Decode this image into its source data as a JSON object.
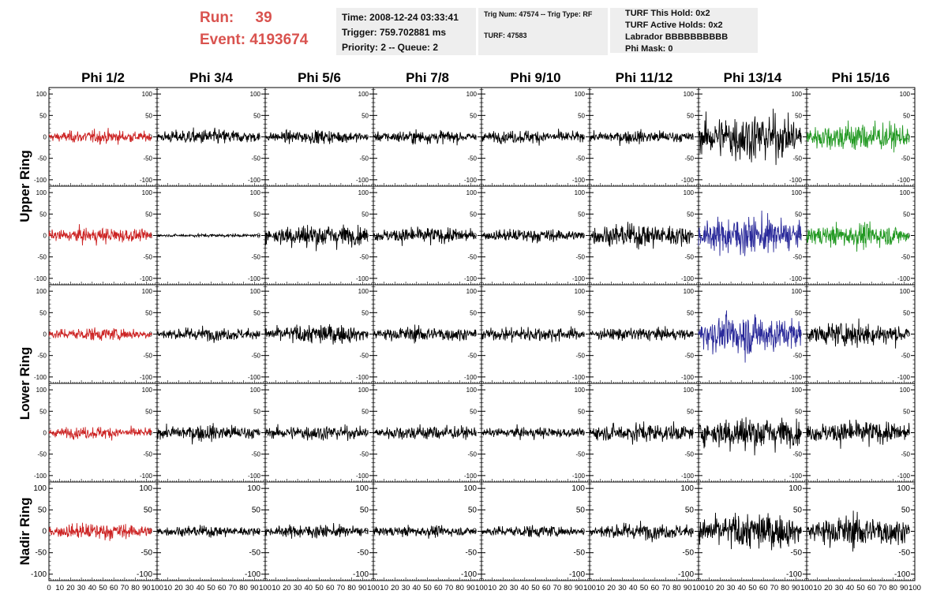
{
  "header": {
    "run_label": "Run:",
    "run_value": "39",
    "event_label": "Event:",
    "event_value": "4193674",
    "time_line": "Time: 2008-12-24 03:33:41",
    "trigger_line": "Trigger: 759.702881 ms",
    "priority_line": "Priority: 2 -- Queue: 2",
    "trig_line": "Trig Num: 47574 -- Trig Type: RF",
    "turf_line": "TURF: 47583",
    "hold_line": "TURF This Hold: 0x2",
    "active_line": "TURF Active Holds: 0x2",
    "labrador_line": "Labrador BBBBBBBBBB",
    "phimask_line": "Phi Mask: 0"
  },
  "colors": {
    "header_red": "#d9534f",
    "trace_default": "#000000",
    "trace_red": "#cc2222",
    "trace_green": "#229922",
    "trace_blue": "#2a2a9a"
  },
  "chart_data": {
    "type": "line",
    "columns": [
      "Phi 1/2",
      "Phi 3/4",
      "Phi 5/6",
      "Phi 7/8",
      "Phi 9/10",
      "Phi 11/12",
      "Phi 13/14",
      "Phi 15/16"
    ],
    "row_labels": [
      "Upper Ring",
      "Lower Ring",
      "Nadir Ring"
    ],
    "rows": 5,
    "xlim": [
      0,
      100
    ],
    "ylim": [
      -115,
      115
    ],
    "y_ticks": [
      100,
      50,
      0,
      -50,
      -100
    ],
    "x_ticks": [
      0,
      10,
      20,
      30,
      40,
      50,
      60,
      70,
      80,
      90,
      100
    ],
    "trace_x_range": [
      0,
      95
    ],
    "amplitudes": [
      [
        12,
        14,
        12,
        12,
        12,
        12,
        45,
        28
      ],
      [
        14,
        3,
        22,
        15,
        12,
        22,
        35,
        22
      ],
      [
        12,
        12,
        18,
        14,
        14,
        12,
        38,
        22
      ],
      [
        11,
        15,
        14,
        14,
        10,
        18,
        32,
        22
      ],
      [
        15,
        10,
        12,
        10,
        11,
        15,
        34,
        30
      ]
    ],
    "trace_colors": [
      [
        "red",
        "default",
        "default",
        "default",
        "default",
        "default",
        "default",
        "green"
      ],
      [
        "red",
        "default",
        "default",
        "default",
        "default",
        "default",
        "blue",
        "green"
      ],
      [
        "red",
        "default",
        "default",
        "default",
        "default",
        "default",
        "blue",
        "default"
      ],
      [
        "red",
        "default",
        "default",
        "default",
        "default",
        "default",
        "default",
        "default"
      ],
      [
        "red",
        "default",
        "default",
        "default",
        "default",
        "default",
        "default",
        "default"
      ]
    ]
  }
}
